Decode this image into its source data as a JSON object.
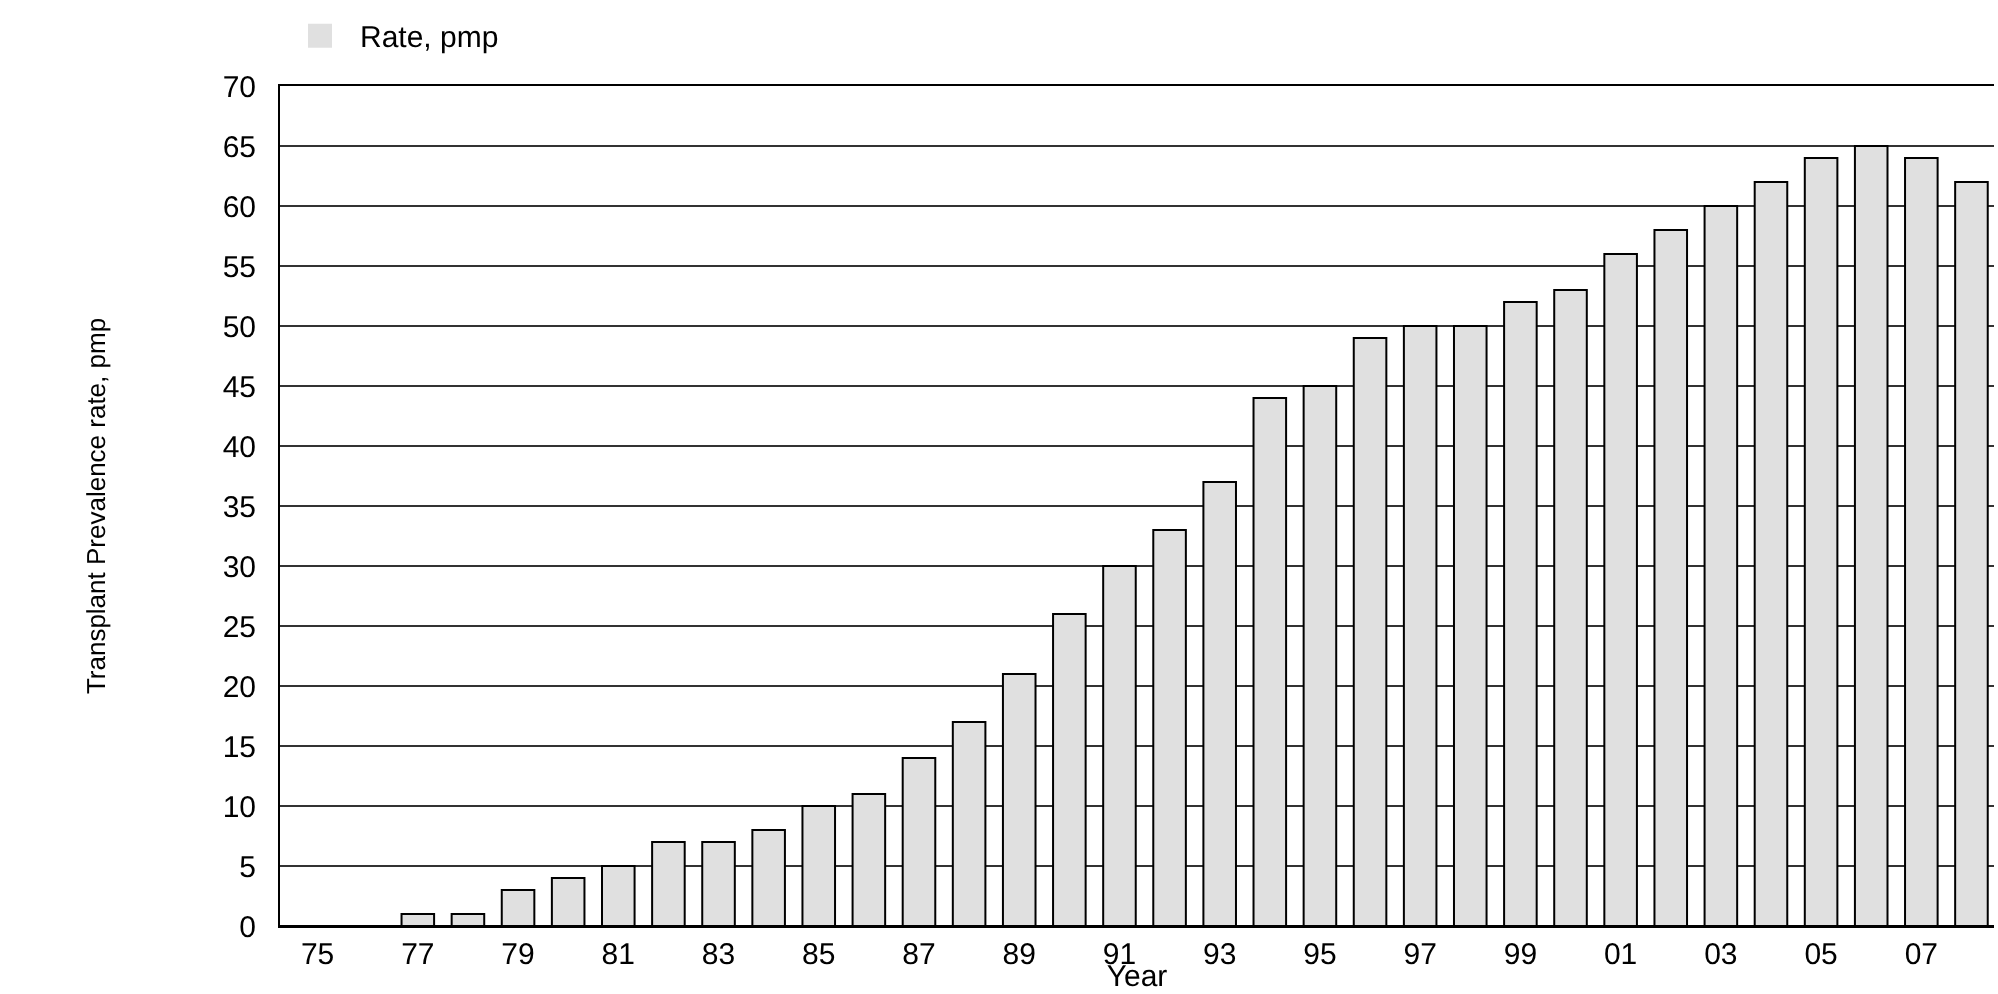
{
  "chart_data": {
    "type": "bar",
    "xlabel": "Year",
    "ylabel": "Transplant Prevalence rate, pmp",
    "categories": [
      "75",
      null,
      "77",
      null,
      "79",
      null,
      "81",
      null,
      "83",
      null,
      "85",
      null,
      "87",
      null,
      "89",
      null,
      "91",
      null,
      "93",
      null,
      "95",
      null,
      "97",
      null,
      "99",
      null,
      "01",
      null,
      "03",
      null,
      "05",
      null,
      "07",
      null
    ],
    "series": [
      {
        "name": "Rate, pmp",
        "color": "#e0e0e0",
        "values": [
          0,
          0,
          1,
          1,
          3,
          4,
          5,
          7,
          7,
          8,
          10,
          11,
          14,
          17,
          21,
          26,
          30,
          33,
          37,
          44,
          45,
          49,
          50,
          50,
          52,
          53,
          56,
          58,
          60,
          62,
          64,
          65,
          64,
          62
        ]
      }
    ],
    "ylim": [
      0,
      70
    ],
    "yticks": [
      0,
      5,
      10,
      15,
      20,
      25,
      30,
      35,
      40,
      45,
      50,
      55,
      60,
      65,
      70
    ],
    "grid": "y",
    "legend": "top left"
  }
}
